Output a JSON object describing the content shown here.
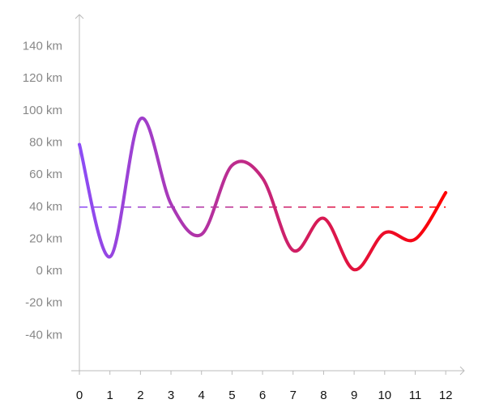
{
  "chart_data": {
    "type": "line",
    "x": [
      0,
      1,
      2,
      3,
      4,
      5,
      6,
      7,
      8,
      9,
      10,
      11,
      12
    ],
    "values": [
      79,
      9,
      95,
      42,
      23,
      66,
      58,
      13,
      33,
      1,
      24,
      20,
      49
    ],
    "gradient": [
      "#8c4cf6",
      "#ff0000"
    ],
    "reference_line": 40,
    "xlim": [
      0,
      12.5
    ],
    "ylim": [
      -62,
      160
    ],
    "xticks": [
      0,
      1,
      2,
      3,
      4,
      5,
      6,
      7,
      8,
      9,
      10,
      11,
      12
    ],
    "yticks": [
      {
        "value": -40,
        "label": "-40 km"
      },
      {
        "value": -20,
        "label": "-20 km"
      },
      {
        "value": 0,
        "label": "0 km"
      },
      {
        "value": 20,
        "label": "20 km"
      },
      {
        "value": 40,
        "label": "40 km"
      },
      {
        "value": 60,
        "label": "60 km"
      },
      {
        "value": 80,
        "label": "80 km"
      },
      {
        "value": 100,
        "label": "100 km"
      },
      {
        "value": 120,
        "label": "120 km"
      },
      {
        "value": 140,
        "label": "140 km"
      }
    ]
  }
}
